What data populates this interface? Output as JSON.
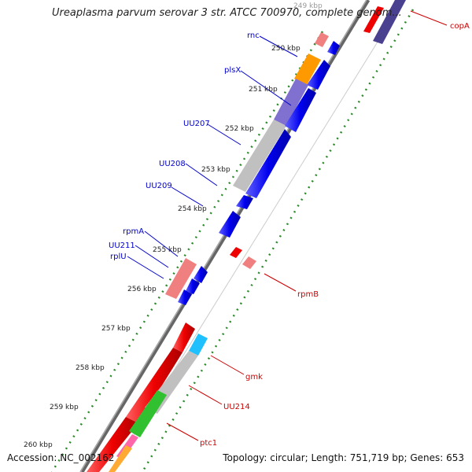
{
  "title": "Ureaplasma parvum serovar 3 str. ATCC 700970, complete genom...",
  "footer": {
    "accession": "Accession: NC_002162",
    "summary": "Topology: circular; Length: 751,719 bp; Genes: 653"
  },
  "ticks": [
    "249 kbp",
    "250 kbp",
    "251 kbp",
    "252 kbp",
    "253 kbp",
    "254 kbp",
    "255 kbp",
    "256 kbp",
    "257 kbp",
    "258 kbp",
    "259 kbp",
    "260 kbp"
  ],
  "gene_labels": {
    "left": [
      "rnc",
      "plsX",
      "UU207",
      "UU208",
      "UU209",
      "rpmA",
      "UU211",
      "rplU"
    ],
    "right": [
      "copA",
      "rpmB",
      "gmk",
      "UU214",
      "ptc1"
    ]
  },
  "colors": {
    "backbone": "#808080",
    "forward_gene": "#0000ee",
    "reverse_gene": "#ee0000",
    "left_label": "#0000cc",
    "right_label": "#cc0000",
    "tick_dots": "#2a8a2a"
  }
}
